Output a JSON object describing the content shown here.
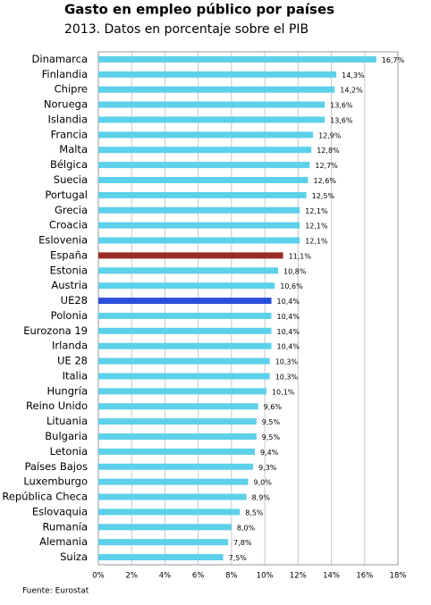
{
  "chart_data": {
    "type": "hbar",
    "title": "Gasto en empleo público por países",
    "subtitle": "2013. Datos en porcentaje sobre el PIB",
    "source": "Fuente: Eurostat",
    "categories": [
      "Dinamarca",
      "Finlandia",
      "Chipre",
      "Noruega",
      "Islandia",
      "Francia",
      "Malta",
      "Bélgica",
      "Suecia",
      "Portugal",
      "Grecia",
      "Croacia",
      "Eslovenia",
      "España",
      "Estonia",
      "Austria",
      "UE28",
      "Polonia",
      "Eurozona 19",
      "Irlanda",
      "UE 28",
      "Italia",
      "Hungría",
      "Reino Unido",
      "Lituania",
      "Bulgaria",
      "Letonia",
      "Países Bajos",
      "Luxemburgo",
      "República Checa",
      "Eslovaquia",
      "Rumanía",
      "Alemania",
      "Suiza"
    ],
    "values": [
      16.7,
      14.3,
      14.2,
      13.6,
      13.6,
      12.9,
      12.8,
      12.7,
      12.6,
      12.5,
      12.1,
      12.1,
      12.1,
      11.1,
      10.8,
      10.6,
      10.4,
      10.4,
      10.4,
      10.4,
      10.3,
      10.3,
      10.1,
      9.6,
      9.5,
      9.5,
      9.4,
      9.3,
      9.0,
      8.9,
      8.5,
      8.0,
      7.8,
      7.5
    ],
    "value_labels": [
      "16,7%",
      "14,3%",
      "14,2%",
      "13,6%",
      "13,6%",
      "12,9%",
      "12,8%",
      "12,7%",
      "12,6%",
      "12,5%",
      "12,1%",
      "12,1%",
      "12,1%",
      "11,1%",
      "10,8%",
      "10,6%",
      "10,4%",
      "10,4%",
      "10,4%",
      "10,4%",
      "10,3%",
      "10,3%",
      "10,1%",
      "9,6%",
      "9,5%",
      "9,5%",
      "9,4%",
      "9,3%",
      "9,0%",
      "8,9%",
      "8,5%",
      "8,0%",
      "7,8%",
      "7,5%"
    ],
    "colors": [
      "#5dd0ea",
      "#5dd0ea",
      "#5dd0ea",
      "#5dd0ea",
      "#5dd0ea",
      "#5dd0ea",
      "#5dd0ea",
      "#5dd0ea",
      "#5dd0ea",
      "#5dd0ea",
      "#5dd0ea",
      "#5dd0ea",
      "#5dd0ea",
      "#9a2b22",
      "#5dd0ea",
      "#5dd0ea",
      "#2b4fd8",
      "#5dd0ea",
      "#5dd0ea",
      "#5dd0ea",
      "#5dd0ea",
      "#5dd0ea",
      "#5dd0ea",
      "#5dd0ea",
      "#5dd0ea",
      "#5dd0ea",
      "#5dd0ea",
      "#5dd0ea",
      "#5dd0ea",
      "#5dd0ea",
      "#5dd0ea",
      "#5dd0ea",
      "#5dd0ea",
      "#5dd0ea"
    ],
    "xlim": [
      0,
      18
    ],
    "xticks": [
      {
        "value": 0,
        "label": "0%"
      },
      {
        "value": 2,
        "label": "2%"
      },
      {
        "value": 4,
        "label": "4%"
      },
      {
        "value": 6,
        "label": "6%"
      },
      {
        "value": 8,
        "label": "8%"
      },
      {
        "value": 10,
        "label": "10%"
      },
      {
        "value": 12,
        "label": "12%"
      },
      {
        "value": 14,
        "label": "14%"
      },
      {
        "value": 16,
        "label": "16%"
      },
      {
        "value": 18,
        "label": "18%"
      }
    ],
    "grid": true
  }
}
